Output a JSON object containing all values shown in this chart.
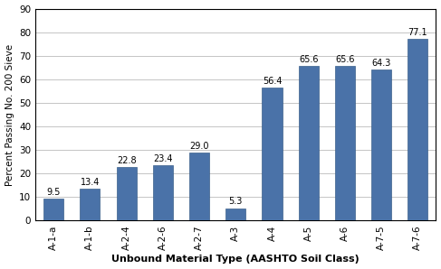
{
  "categories": [
    "A-1-a",
    "A-1-b",
    "A-2-4",
    "A-2-6",
    "A-2-7",
    "A-3",
    "A-4",
    "A-5",
    "A-6",
    "A-7-5",
    "A-7-6"
  ],
  "values": [
    9.5,
    13.4,
    22.8,
    23.4,
    29.0,
    5.3,
    56.4,
    65.6,
    65.6,
    64.3,
    77.1
  ],
  "bar_color": "#4a72a8",
  "xlabel": "Unbound Material Type (AASHTO Soil Class)",
  "ylabel": "Percent Passing No. 200 Sieve",
  "ylim": [
    0,
    90
  ],
  "yticks": [
    0,
    10,
    20,
    30,
    40,
    50,
    60,
    70,
    80,
    90
  ],
  "bar_label_fontsize": 7,
  "tick_fontsize": 7.5,
  "xlabel_fontsize": 8,
  "ylabel_fontsize": 7.5,
  "bar_edge_color": "#3a5f8a",
  "grid_color": "#bbbbbb",
  "bar_width": 0.55
}
